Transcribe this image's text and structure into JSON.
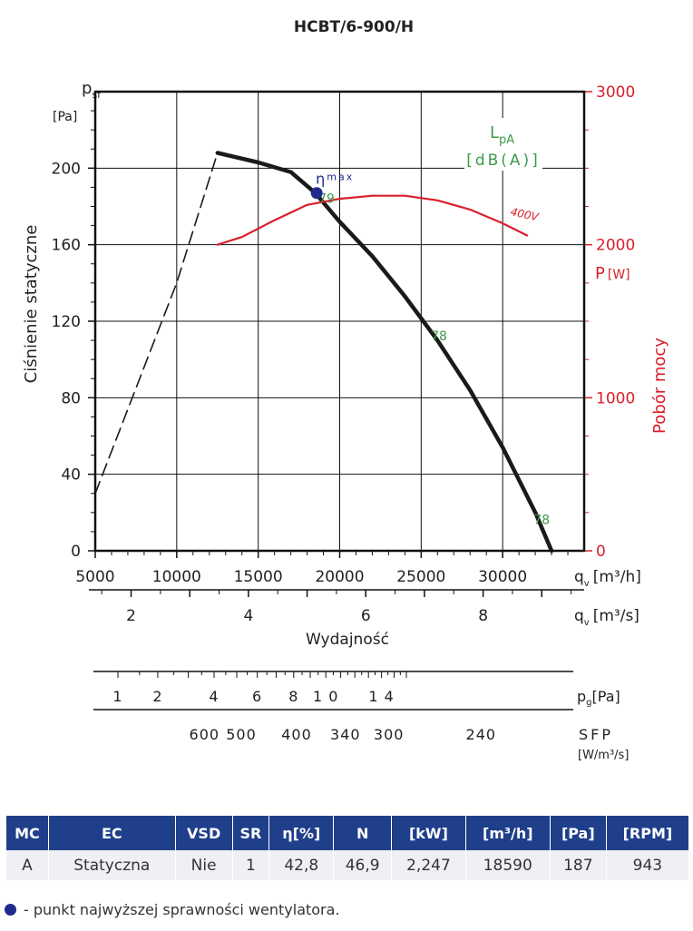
{
  "chart_data": {
    "type": "line",
    "title": "HCBT/6-900/H",
    "left_axis": {
      "symbol": "p",
      "symbol_sub": "sf",
      "unit": "[Pa]",
      "label": "Ciśnienie statyczne",
      "range": [
        0,
        240
      ],
      "ticks": [
        0,
        40,
        80,
        120,
        160,
        200
      ],
      "tick_labels": [
        "0",
        "40",
        "80",
        "120",
        "160",
        "200"
      ]
    },
    "right_axis": {
      "symbol": "P",
      "unit": "[W]",
      "label": "Pobór mocy",
      "range": [
        0,
        3000
      ],
      "ticks": [
        0,
        1000,
        2000,
        3000
      ],
      "tick_labels": [
        "0",
        "1000",
        "2000",
        "3000"
      ]
    },
    "x_axis": {
      "range": [
        5000,
        35000
      ],
      "ticks": [
        5000,
        10000,
        15000,
        20000,
        25000,
        30000
      ],
      "tick_labels": [
        "5000",
        "10000",
        "15000",
        "20000",
        "25000",
        "30000"
      ],
      "gridlines": [
        10000,
        15000,
        20000,
        25000,
        30000
      ],
      "label_symbol": "q",
      "label_sub": "v",
      "unit": "[m³/h]"
    },
    "x_axis_2": {
      "ticks": [
        2,
        4,
        6,
        8
      ],
      "tick_labels": [
        "2",
        "4",
        "6",
        "8"
      ],
      "label_symbol": "q",
      "label_sub": "v",
      "unit": "[m³/s]",
      "label": "Wydajność"
    },
    "lpa_label": {
      "symbol": "L",
      "symbol_sub": "pA",
      "unit": "[dB(A)]"
    },
    "grid": true,
    "series": [
      {
        "name": "",
        "role": "pressure-stall",
        "style": "dashed",
        "color": "#1a1a1a",
        "x": [
          5000,
          7500,
          10000,
          12500
        ],
        "y": [
          30,
          85,
          140,
          208
        ]
      },
      {
        "name": "",
        "role": "pressure",
        "style": "solid",
        "color": "#1a1a1a",
        "x": [
          12500,
          15000,
          17000,
          18500,
          20000,
          22000,
          24000,
          26000,
          28000,
          30000,
          32000,
          33000
        ],
        "y": [
          208,
          203,
          198,
          187,
          172,
          154,
          133,
          110,
          84,
          54,
          20,
          0
        ]
      },
      {
        "name": "400V",
        "role": "power",
        "style": "solid",
        "color": "#d8202a",
        "axis": "right",
        "x": [
          12500,
          14000,
          16000,
          18000,
          20000,
          22000,
          24000,
          26000,
          28000,
          30000,
          31500
        ],
        "y": [
          2000,
          2050,
          2160,
          2260,
          2300,
          2320,
          2320,
          2290,
          2230,
          2140,
          2060
        ]
      }
    ],
    "annotations": [
      {
        "text": "79",
        "x": 18700,
        "y": 182,
        "color": "#3d9b4b"
      },
      {
        "text": "78",
        "x": 25600,
        "y": 110,
        "color": "#3d9b4b"
      },
      {
        "text": "78",
        "x": 31900,
        "y": 14,
        "color": "#3d9b4b"
      }
    ],
    "eta_max": {
      "symbol": "η",
      "label": "max",
      "x": 18590,
      "y": 187,
      "color": "#1f2a8c"
    },
    "pressure_scale": {
      "ticks": [
        1,
        2,
        4,
        6,
        8,
        10,
        14
      ],
      "tick_labels": [
        "1",
        "2",
        "4",
        "6",
        "8",
        "1 0",
        "1 4"
      ],
      "label_symbol": "p",
      "label_sub": "g",
      "unit": "[Pa]"
    },
    "sfp_scale": {
      "ticks": [
        600,
        500,
        400,
        340,
        300,
        240
      ],
      "tick_labels": [
        "600",
        "500",
        "400",
        "340",
        "300",
        "240"
      ],
      "label": "SFP",
      "unit": "[W/m³/s]"
    }
  },
  "table": {
    "headers": [
      "MC",
      "EC",
      "VSD",
      "SR",
      "η[%]",
      "N",
      "[kW]",
      "[m³/h]",
      "[Pa]",
      "[RPM]"
    ],
    "row": [
      "A",
      "Statyczna",
      "Nie",
      "1",
      "42,8",
      "46,9",
      "2,247",
      "18590",
      "187",
      "943"
    ]
  },
  "footnote": "- punkt najwyższej sprawności wentylatora.",
  "colors": {
    "table_header": "#1f3f8a",
    "table_row": "#eef0f4",
    "green": "#3d9b4b",
    "red": "#d8202a",
    "blue": "#1f2a8c"
  }
}
